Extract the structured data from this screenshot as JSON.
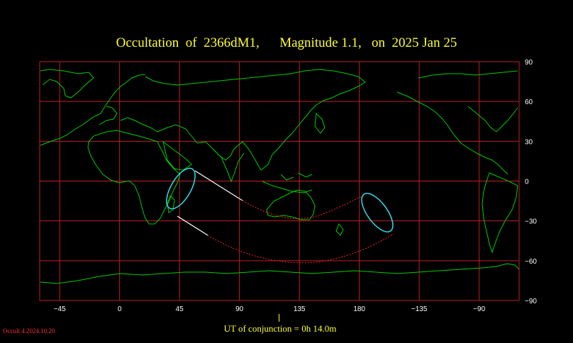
{
  "title": "Occultation  of  2366dM1,      Magnitude 1.1,   on  2025 Jan 25",
  "axes": {
    "lon_ticks": [
      "−45",
      "0",
      "45",
      "90",
      "135",
      "180",
      "−135",
      "−90"
    ],
    "lat_ticks": [
      "90",
      "60",
      "30",
      "0",
      "−30",
      "−60",
      "−90"
    ],
    "lon_range": [
      -60,
      300
    ],
    "lat_range": [
      -90,
      90
    ]
  },
  "conjunction_label": "UT of conjunction =  0h 14.0m",
  "version": "Occult 4.2024.10.20",
  "colors": {
    "coast": "#00cc00",
    "grid": "#c02020",
    "limit_day": "#ffffff",
    "limit_night": "#ff2020",
    "outline": "#33ddee",
    "title": "#ffff33"
  }
}
